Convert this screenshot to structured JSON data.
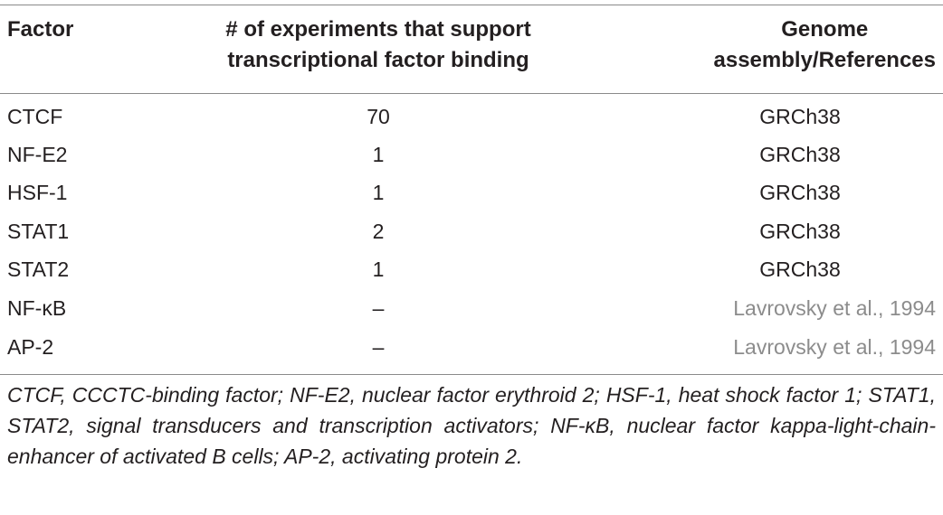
{
  "table": {
    "headers": {
      "factor": "Factor",
      "experiments_line1": "# of experiments that support",
      "experiments_line2": "transcriptional factor binding",
      "genome_line1": "Genome",
      "genome_line2": "assembly/References"
    },
    "rows": [
      {
        "factor": "CTCF",
        "experiments": "70",
        "genome": "GRCh38"
      },
      {
        "factor": "NF-E2",
        "experiments": "1",
        "genome": "GRCh38"
      },
      {
        "factor": "HSF-1",
        "experiments": "1",
        "genome": "GRCh38"
      },
      {
        "factor": "STAT1",
        "experiments": "2",
        "genome": "GRCh38"
      },
      {
        "factor": "STAT2",
        "experiments": "1",
        "genome": "GRCh38"
      },
      {
        "factor": "NF-κB",
        "experiments": "–",
        "genome": "Lavrovsky et al., 1994"
      },
      {
        "factor": "AP-2",
        "experiments": "–",
        "genome": "Lavrovsky et al., 1994"
      }
    ]
  },
  "footnote": "CTCF, CCCTC-binding factor; NF-E2, nuclear factor erythroid 2; HSF-1, heat shock factor 1; STAT1, STAT2, signal transducers and transcription activators; NF-κB, nuclear factor kappa-light-chain-enhancer of activated B cells; AP-2, activating protein 2.",
  "colors": {
    "text": "#231f20",
    "reference_link": "#8c8c8c",
    "rule": "#8a8a8a"
  }
}
